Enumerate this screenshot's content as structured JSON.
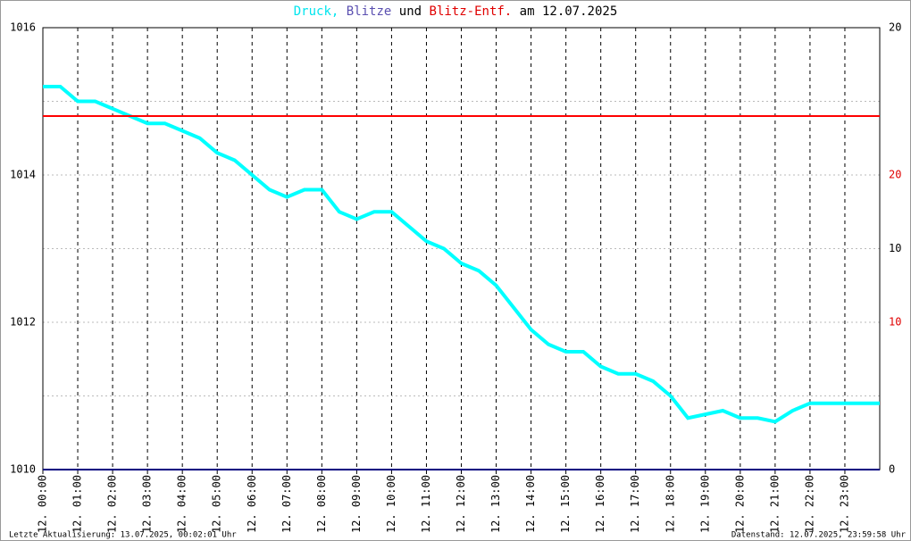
{
  "chart_data": {
    "type": "line",
    "title_parts": [
      {
        "text": "Druck,",
        "color": "#00e5ee"
      },
      {
        "text": "Blitze",
        "color": "#5a4fb0"
      },
      {
        "text": "und",
        "color": "#000000"
      },
      {
        "text": "Blitz-Entf.",
        "color": "#e00000"
      },
      {
        "text": "am 12.07.2025",
        "color": "#000000"
      }
    ],
    "x": [
      0,
      0.5,
      1,
      1.5,
      2,
      2.5,
      3,
      3.5,
      4,
      4.5,
      5,
      5.5,
      6,
      6.5,
      7,
      7.5,
      8,
      8.5,
      9,
      9.5,
      10,
      10.5,
      11,
      11.5,
      12,
      12.5,
      13,
      13.5,
      14,
      14.5,
      15,
      15.5,
      16,
      16.5,
      17,
      17.5,
      18,
      18.5,
      19,
      19.5,
      20,
      20.5,
      21,
      21.5,
      22,
      22.5,
      23,
      23.5,
      24
    ],
    "series": [
      {
        "name": "Druck",
        "color": "#00ffff",
        "axis": "y",
        "values": [
          1015.2,
          1015.2,
          1015.0,
          1015.0,
          1014.9,
          1014.8,
          1014.7,
          1014.7,
          1014.6,
          1014.5,
          1014.3,
          1014.2,
          1014.0,
          1013.8,
          1013.7,
          1013.8,
          1013.8,
          1013.5,
          1013.4,
          1013.5,
          1013.5,
          1013.3,
          1013.1,
          1013.0,
          1012.8,
          1012.7,
          1012.5,
          1012.2,
          1011.9,
          1011.7,
          1011.6,
          1011.6,
          1011.4,
          1011.3,
          1011.3,
          1011.2,
          1011.0,
          1010.7,
          1010.75,
          1010.8,
          1010.7,
          1010.7,
          1010.65,
          1010.8,
          1010.9,
          1010.9,
          1010.9,
          1010.9,
          1010.9
        ]
      },
      {
        "name": "Blitze",
        "color": "#000080",
        "axis": "y2",
        "values": [
          0,
          0,
          0,
          0,
          0,
          0,
          0,
          0,
          0,
          0,
          0,
          0,
          0,
          0,
          0,
          0,
          0,
          0,
          0,
          0,
          0,
          0,
          0,
          0,
          0,
          0,
          0,
          0,
          0,
          0,
          0,
          0,
          0,
          0,
          0,
          0,
          0,
          0,
          0,
          0,
          0,
          0,
          0,
          0,
          0,
          0,
          0,
          0,
          0
        ]
      },
      {
        "name": "Blitz-Entf.",
        "color": "#ff0000",
        "axis": "y3",
        "values": [
          24,
          24,
          24,
          24,
          24,
          24,
          24,
          24,
          24,
          24,
          24,
          24,
          24,
          24,
          24,
          24,
          24,
          24,
          24,
          24,
          24,
          24,
          24,
          24,
          24,
          24,
          24,
          24,
          24,
          24,
          24,
          24,
          24,
          24,
          24,
          24,
          24,
          24,
          24,
          24,
          24,
          24,
          24,
          24,
          24,
          24,
          24,
          24,
          24
        ]
      }
    ],
    "xlim": [
      0,
      24
    ],
    "xticks": [
      {
        "value": 0,
        "label": "12. 00:00"
      },
      {
        "value": 1,
        "label": "12. 01:00"
      },
      {
        "value": 2,
        "label": "12. 02:00"
      },
      {
        "value": 3,
        "label": "12. 03:00"
      },
      {
        "value": 4,
        "label": "12. 04:00"
      },
      {
        "value": 5,
        "label": "12. 05:00"
      },
      {
        "value": 6,
        "label": "12. 06:00"
      },
      {
        "value": 7,
        "label": "12. 07:00"
      },
      {
        "value": 8,
        "label": "12. 08:00"
      },
      {
        "value": 9,
        "label": "12. 09:00"
      },
      {
        "value": 10,
        "label": "12. 10:00"
      },
      {
        "value": 11,
        "label": "12. 11:00"
      },
      {
        "value": 12,
        "label": "12. 12:00"
      },
      {
        "value": 13,
        "label": "12. 13:00"
      },
      {
        "value": 14,
        "label": "12. 14:00"
      },
      {
        "value": 15,
        "label": "12. 15:00"
      },
      {
        "value": 16,
        "label": "12. 16:00"
      },
      {
        "value": 17,
        "label": "12. 17:00"
      },
      {
        "value": 18,
        "label": "12. 18:00"
      },
      {
        "value": 19,
        "label": "12. 19:00"
      },
      {
        "value": 20,
        "label": "12. 20:00"
      },
      {
        "value": 21,
        "label": "12. 21:00"
      },
      {
        "value": 22,
        "label": "12. 22:00"
      },
      {
        "value": 23,
        "label": "12. 23:00"
      }
    ],
    "ylim": [
      1010,
      1016
    ],
    "yticks": [
      1010,
      1012,
      1014,
      1016
    ],
    "y_minor_ticks": [
      1011,
      1013,
      1015
    ],
    "y2lim": [
      0,
      20
    ],
    "y2ticks": [
      0,
      10,
      20
    ],
    "y3lim": [
      0,
      30
    ],
    "y3ticks": [
      10,
      20
    ],
    "y3color": "#e00000",
    "footer_left": "Letzte Aktualisierung: 13.07.2025, 00:02:01 Uhr",
    "footer_right": "Datenstand: 12.07.2025, 23:59:58 Uhr"
  }
}
